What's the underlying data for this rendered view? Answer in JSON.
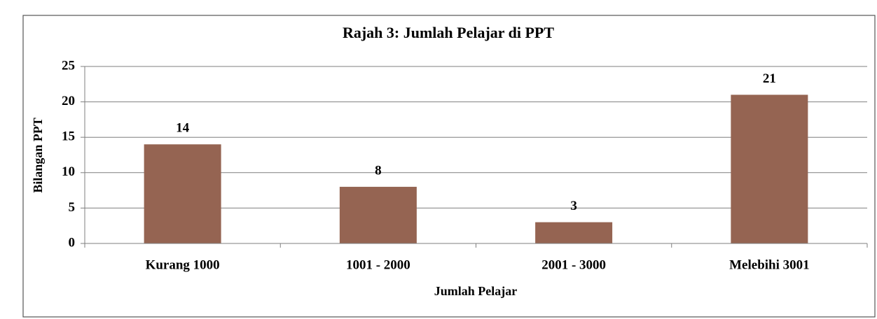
{
  "chart_data": {
    "type": "bar",
    "title": "Rajah 3: Jumlah Pelajar di PPT",
    "x_label": "Jumlah Pelajar",
    "y_label": "Bilangan PPT",
    "categories": [
      "Kurang 1000",
      "1001 - 2000",
      "2001 - 3000",
      "Melebihi 3001"
    ],
    "values": [
      14,
      8,
      3,
      21
    ],
    "color": "#956452",
    "ylim": [
      0,
      25
    ],
    "yticks": [
      0,
      5,
      10,
      15,
      20,
      25
    ],
    "grid": true
  }
}
